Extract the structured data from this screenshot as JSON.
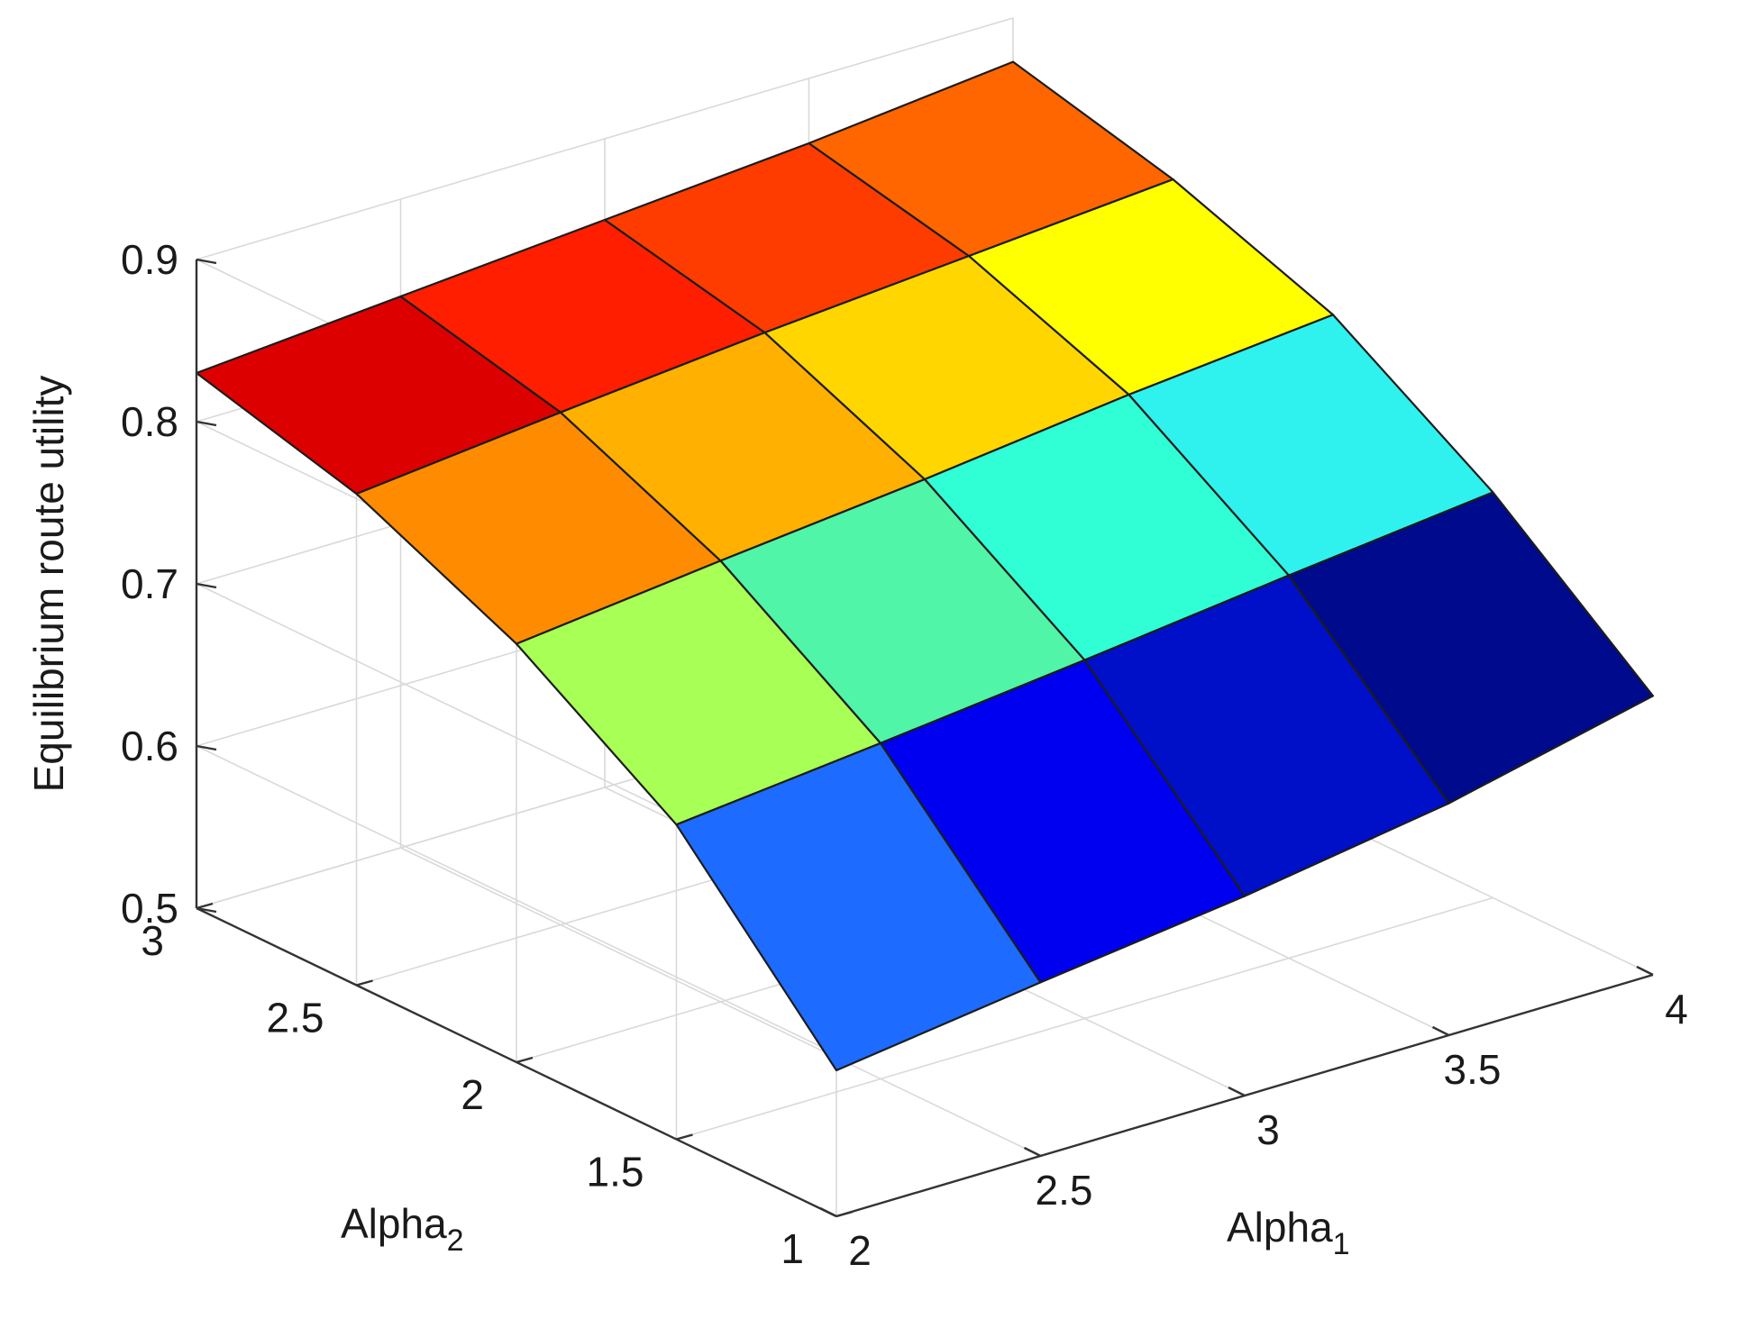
{
  "chart_data": {
    "type": "surface",
    "xlabel": "Alpha",
    "xlabel_sub": "1",
    "ylabel": "Alpha",
    "ylabel_sub": "2",
    "zlabel": "Equilibrium route utility",
    "x": [
      2,
      2.5,
      3,
      3.5,
      4
    ],
    "y": [
      1,
      1.5,
      2,
      2.5,
      3
    ],
    "z": [
      [
        0.59,
        0.607,
        0.623,
        0.643,
        0.672
      ],
      [
        0.694,
        0.707,
        0.721,
        0.736,
        0.75
      ],
      [
        0.758,
        0.772,
        0.785,
        0.8,
        0.812
      ],
      [
        0.803,
        0.816,
        0.828,
        0.838,
        0.848
      ],
      [
        0.83,
        0.84,
        0.85,
        0.86,
        0.873
      ]
    ],
    "cell_colors": [
      [
        "#1e6bff",
        "#0000f0",
        "#0010c8",
        "#000a8c"
      ],
      [
        "#a8ff55",
        "#50f5a8",
        "#30ffd5",
        "#2ff2ee"
      ],
      [
        "#ff8c00",
        "#ffb000",
        "#ffd600",
        "#ffff00"
      ],
      [
        "#dd0000",
        "#ff1e00",
        "#ff3c00",
        "#ff6600"
      ]
    ],
    "xlim": [
      2,
      4
    ],
    "ylim": [
      1,
      3
    ],
    "zlim": [
      0.5,
      0.9
    ],
    "xticks": [
      "2",
      "2.5",
      "3",
      "3.5",
      "4"
    ],
    "yticks": [
      "1",
      "1.5",
      "2",
      "2.5",
      "3"
    ],
    "zticks": [
      "0.5",
      "0.6",
      "0.7",
      "0.8",
      "0.9"
    ],
    "colormap": "jet",
    "grid": true
  }
}
